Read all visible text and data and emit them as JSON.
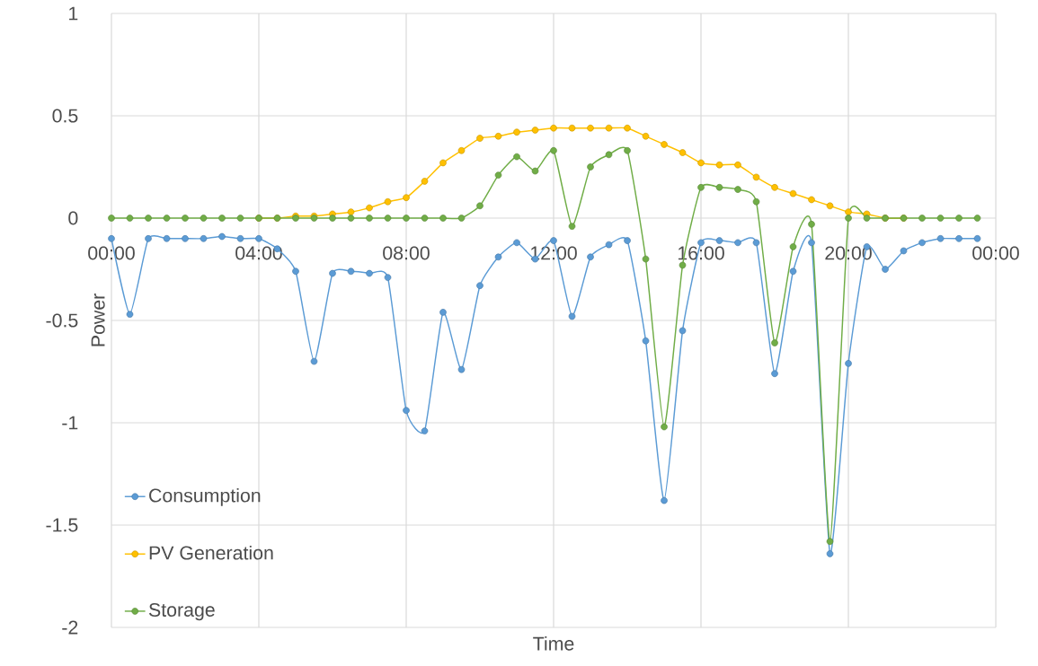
{
  "chart_data": {
    "type": "line",
    "xlabel": "Time",
    "ylabel": "Power",
    "x": [
      0,
      0.5,
      1,
      1.5,
      2,
      2.5,
      3,
      3.5,
      4,
      4.5,
      5,
      5.5,
      6,
      6.5,
      7,
      7.5,
      8,
      8.5,
      9,
      9.5,
      10,
      10.5,
      11,
      11.5,
      12,
      12.5,
      13,
      13.5,
      14,
      14.5,
      15,
      15.5,
      16,
      16.5,
      17,
      17.5,
      18,
      18.5,
      19,
      19.5,
      20,
      20.5,
      21,
      21.5,
      22,
      22.5,
      23,
      23.5
    ],
    "series": [
      {
        "name": "Consumption",
        "color": "#5b9bd5",
        "values": [
          -0.1,
          -0.47,
          -0.1,
          -0.1,
          -0.1,
          -0.1,
          -0.09,
          -0.1,
          -0.1,
          -0.15,
          -0.26,
          -0.7,
          -0.27,
          -0.26,
          -0.27,
          -0.29,
          -0.94,
          -1.04,
          -0.46,
          -0.74,
          -0.33,
          -0.19,
          -0.12,
          -0.2,
          -0.11,
          -0.48,
          -0.19,
          -0.13,
          -0.11,
          -0.6,
          -1.38,
          -0.55,
          -0.12,
          -0.11,
          -0.12,
          -0.12,
          -0.76,
          -0.26,
          -0.12,
          -1.64,
          -0.71,
          -0.14,
          -0.25,
          -0.16,
          -0.12,
          -0.1,
          -0.1,
          -0.1
        ]
      },
      {
        "name": "PV Generation",
        "color": "#ffc000",
        "values": [
          null,
          null,
          null,
          null,
          null,
          null,
          null,
          null,
          0,
          0,
          0.01,
          0.01,
          0.02,
          0.03,
          0.05,
          0.08,
          0.1,
          0.18,
          0.27,
          0.33,
          0.39,
          0.4,
          0.42,
          0.43,
          0.44,
          0.44,
          0.44,
          0.44,
          0.44,
          0.4,
          0.36,
          0.32,
          0.27,
          0.26,
          0.26,
          0.2,
          0.15,
          0.12,
          0.09,
          0.06,
          0.03,
          0.02,
          0,
          0,
          null,
          null,
          null,
          null
        ]
      },
      {
        "name": "Storage",
        "color": "#70ad47",
        "values": [
          0,
          0,
          0,
          0,
          0,
          0,
          0,
          0,
          0,
          0,
          0,
          0,
          0,
          0,
          0,
          0,
          0,
          0,
          0,
          0,
          0.06,
          0.21,
          0.3,
          0.23,
          0.33,
          -0.04,
          0.25,
          0.31,
          0.33,
          -0.2,
          -1.02,
          -0.23,
          0.15,
          0.15,
          0.14,
          0.08,
          -0.61,
          -0.14,
          -0.03,
          -1.58,
          0,
          0,
          0,
          0,
          0,
          0,
          0,
          0
        ]
      }
    ],
    "xlim": [
      0,
      24
    ],
    "xticks": [
      {
        "value": 0,
        "label": "00:00"
      },
      {
        "value": 4,
        "label": "04:00"
      },
      {
        "value": 8,
        "label": "08:00"
      },
      {
        "value": 12,
        "label": "12:00"
      },
      {
        "value": 16,
        "label": "16:00"
      },
      {
        "value": 20,
        "label": "20:00"
      },
      {
        "value": 24,
        "label": "00:00"
      }
    ],
    "ylim": [
      -2,
      1
    ],
    "yticks": [
      -2,
      -1.5,
      -1,
      -0.5,
      0,
      0.5,
      1
    ],
    "grid": true,
    "legend": "bottom left",
    "marker": "circle",
    "line_style": "solid"
  }
}
